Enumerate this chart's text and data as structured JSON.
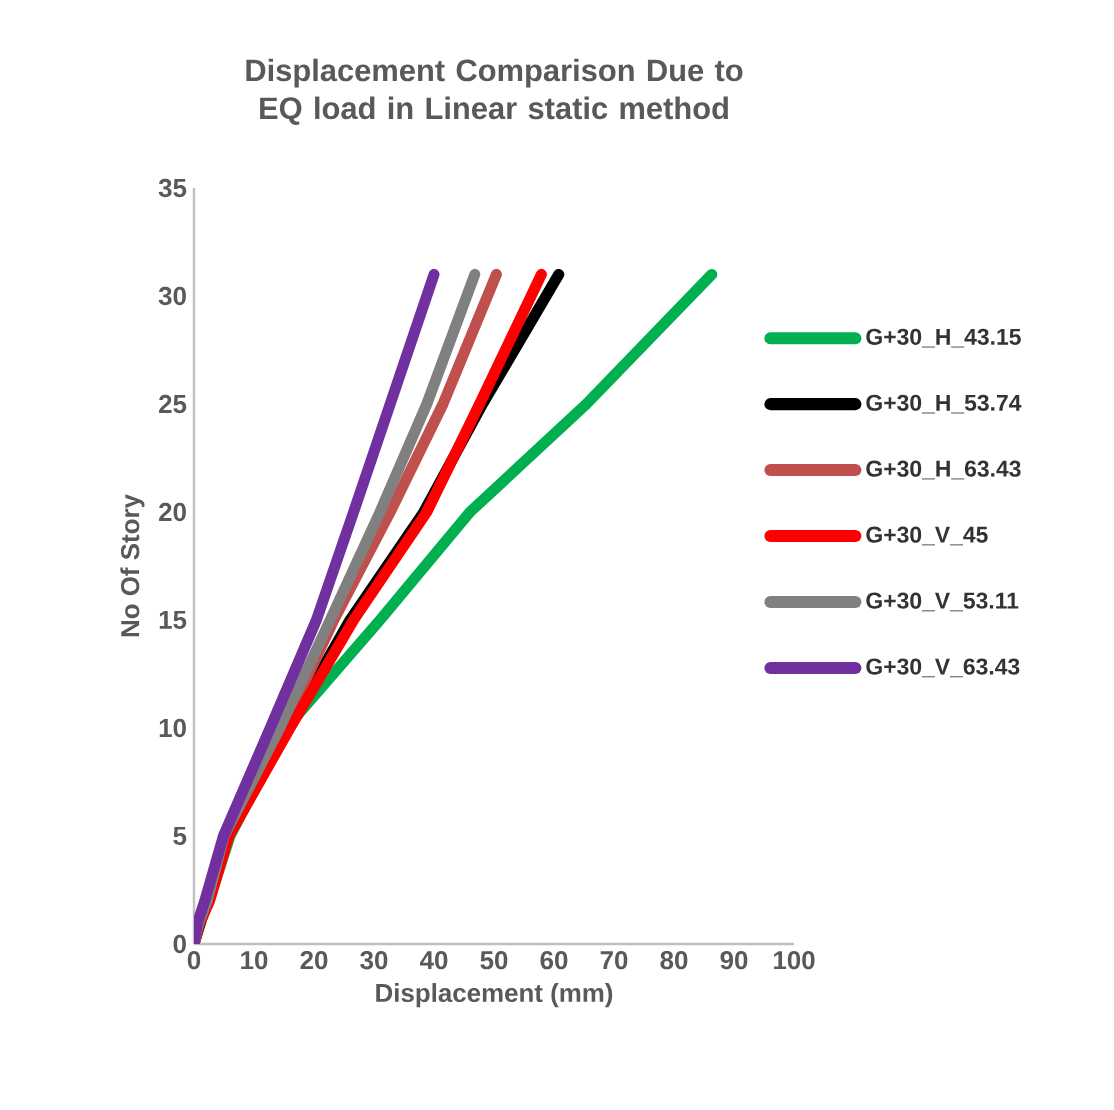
{
  "chart_data": {
    "type": "line",
    "title": "Displacement Comparison Due to EQ load in Linear static method",
    "xlabel": "Displacement (mm)",
    "ylabel": "No Of Story",
    "xlim": [
      0,
      100
    ],
    "xticks": [
      0,
      10,
      20,
      30,
      40,
      50,
      60,
      70,
      80,
      90,
      100
    ],
    "ylim": [
      0,
      35
    ],
    "yticks": [
      0,
      5,
      10,
      15,
      20,
      25,
      30,
      35
    ],
    "grid": false,
    "legend": "right",
    "marker": "none",
    "line_style": "solid",
    "series": [
      {
        "name": "G+30_H_43.15",
        "color": "#00b050",
        "x": [
          0,
          1,
          2.5,
          6,
          15.4,
          31,
          46,
          65.4,
          86.3
        ],
        "values": [
          0,
          1,
          2,
          5,
          10,
          15,
          20,
          25,
          31
        ]
      },
      {
        "name": "G+30_H_53.74",
        "color": "#000000",
        "x": [
          0,
          1,
          2.5,
          5.5,
          15.4,
          26,
          38.3,
          48.1,
          60.8
        ],
        "values": [
          0,
          null,
          null,
          5,
          null,
          15,
          20,
          25,
          31
        ]
      },
      {
        "name": "G+30_H_63.43",
        "color": "#c0504d",
        "x": [
          0,
          0.8,
          2.2,
          5.2,
          14.9,
          23.3,
          32.7,
          41.5,
          50.4
        ],
        "values": [
          0,
          1,
          2,
          5,
          10,
          15,
          20,
          25,
          31
        ]
      },
      {
        "name": "G+30_V_45",
        "color": "#ff0000",
        "x": [
          0,
          1,
          2.6,
          5.8,
          16,
          26.6,
          38.8,
          47.6,
          57.9
        ],
        "values": [
          0,
          1,
          2,
          5,
          10,
          15,
          20,
          25,
          31
        ]
      },
      {
        "name": "G+30_V_53.11",
        "color": "#808080",
        "x": [
          0,
          0.8,
          2.2,
          5,
          14.3,
          22.7,
          31,
          38.8,
          46.8
        ],
        "values": [
          0,
          1,
          2,
          5,
          10,
          15,
          20,
          25,
          31
        ]
      },
      {
        "name": "G+30_V_63.43",
        "color": "#7030a0",
        "x": [
          0,
          0.6,
          1.8,
          4.9,
          12.7,
          20.4,
          26.6,
          32.7,
          40
        ],
        "values": [
          0,
          1,
          2,
          5,
          10,
          15,
          20,
          25,
          31
        ]
      }
    ]
  }
}
